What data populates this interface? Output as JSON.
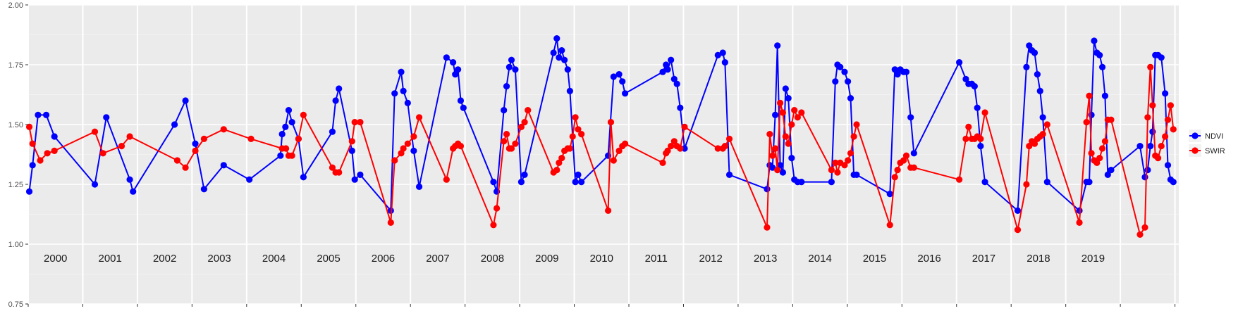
{
  "chart_data": {
    "type": "line",
    "ylim": [
      0.75,
      2.0
    ],
    "y_ticks": [
      "0.75",
      "1.00",
      "1.25",
      "1.50",
      "1.75",
      "2.00"
    ],
    "year_labels": [
      "2000",
      "2001",
      "2002",
      "2003",
      "2004",
      "2005",
      "2006",
      "2007",
      "2008",
      "2009",
      "2010",
      "2011",
      "2012",
      "2013",
      "2014",
      "2015",
      "2016",
      "2017",
      "2018",
      "2019"
    ],
    "grid": true,
    "legend_position": "right",
    "series": [
      {
        "name": "NDVI",
        "color": "#0000ff",
        "points": [
          [
            2000.02,
            1.22
          ],
          [
            2000.08,
            1.33
          ],
          [
            2000.18,
            1.54
          ],
          [
            2000.33,
            1.54
          ],
          [
            2000.48,
            1.45
          ],
          [
            2001.22,
            1.25
          ],
          [
            2001.43,
            1.53
          ],
          [
            2001.86,
            1.27
          ],
          [
            2001.92,
            1.22
          ],
          [
            2002.68,
            1.5
          ],
          [
            2002.88,
            1.6
          ],
          [
            2003.06,
            1.42
          ],
          [
            2003.22,
            1.23
          ],
          [
            2003.58,
            1.33
          ],
          [
            2004.05,
            1.27
          ],
          [
            2004.62,
            1.37
          ],
          [
            2004.65,
            1.46
          ],
          [
            2004.71,
            1.49
          ],
          [
            2004.77,
            1.56
          ],
          [
            2004.83,
            1.51
          ],
          [
            2004.95,
            1.44
          ],
          [
            2005.04,
            1.28
          ],
          [
            2005.57,
            1.47
          ],
          [
            2005.63,
            1.6
          ],
          [
            2005.69,
            1.65
          ],
          [
            2005.93,
            1.39
          ],
          [
            2005.98,
            1.27
          ],
          [
            2006.08,
            1.29
          ],
          [
            2006.64,
            1.14
          ],
          [
            2006.71,
            1.63
          ],
          [
            2006.83,
            1.72
          ],
          [
            2006.87,
            1.64
          ],
          [
            2006.95,
            1.59
          ],
          [
            2007.06,
            1.39
          ],
          [
            2007.16,
            1.24
          ],
          [
            2007.66,
            1.78
          ],
          [
            2007.78,
            1.76
          ],
          [
            2007.82,
            1.71
          ],
          [
            2007.87,
            1.73
          ],
          [
            2007.92,
            1.6
          ],
          [
            2007.97,
            1.57
          ],
          [
            2008.52,
            1.26
          ],
          [
            2008.58,
            1.22
          ],
          [
            2008.71,
            1.56
          ],
          [
            2008.76,
            1.66
          ],
          [
            2008.81,
            1.74
          ],
          [
            2008.85,
            1.77
          ],
          [
            2008.92,
            1.73
          ],
          [
            2009.03,
            1.26
          ],
          [
            2009.09,
            1.29
          ],
          [
            2009.62,
            1.8
          ],
          [
            2009.68,
            1.86
          ],
          [
            2009.72,
            1.78
          ],
          [
            2009.77,
            1.81
          ],
          [
            2009.82,
            1.77
          ],
          [
            2009.88,
            1.73
          ],
          [
            2009.92,
            1.64
          ],
          [
            2010.02,
            1.26
          ],
          [
            2010.07,
            1.29
          ],
          [
            2010.13,
            1.26
          ],
          [
            2010.62,
            1.37
          ],
          [
            2010.72,
            1.7
          ],
          [
            2010.82,
            1.71
          ],
          [
            2010.88,
            1.68
          ],
          [
            2010.93,
            1.63
          ],
          [
            2011.62,
            1.72
          ],
          [
            2011.68,
            1.75
          ],
          [
            2011.71,
            1.73
          ],
          [
            2011.77,
            1.77
          ],
          [
            2011.83,
            1.69
          ],
          [
            2011.88,
            1.67
          ],
          [
            2011.94,
            1.57
          ],
          [
            2012.02,
            1.4
          ],
          [
            2012.63,
            1.79
          ],
          [
            2012.72,
            1.8
          ],
          [
            2012.76,
            1.76
          ],
          [
            2012.84,
            1.29
          ],
          [
            2013.53,
            1.23
          ],
          [
            2013.58,
            1.33
          ],
          [
            2013.63,
            1.32
          ],
          [
            2013.68,
            1.54
          ],
          [
            2013.72,
            1.83
          ],
          [
            2013.77,
            1.33
          ],
          [
            2013.82,
            1.3
          ],
          [
            2013.87,
            1.65
          ],
          [
            2013.92,
            1.61
          ],
          [
            2013.98,
            1.36
          ],
          [
            2014.03,
            1.27
          ],
          [
            2014.09,
            1.26
          ],
          [
            2014.16,
            1.26
          ],
          [
            2014.71,
            1.26
          ],
          [
            2014.78,
            1.68
          ],
          [
            2014.82,
            1.75
          ],
          [
            2014.87,
            1.74
          ],
          [
            2014.95,
            1.72
          ],
          [
            2015.01,
            1.68
          ],
          [
            2015.06,
            1.61
          ],
          [
            2015.12,
            1.29
          ],
          [
            2015.17,
            1.29
          ],
          [
            2015.78,
            1.21
          ],
          [
            2015.87,
            1.73
          ],
          [
            2015.92,
            1.71
          ],
          [
            2015.97,
            1.73
          ],
          [
            2016.03,
            1.72
          ],
          [
            2016.08,
            1.72
          ],
          [
            2016.16,
            1.53
          ],
          [
            2016.22,
            1.38
          ],
          [
            2017.05,
            1.76
          ],
          [
            2017.17,
            1.69
          ],
          [
            2017.22,
            1.67
          ],
          [
            2017.28,
            1.67
          ],
          [
            2017.33,
            1.66
          ],
          [
            2017.38,
            1.57
          ],
          [
            2017.44,
            1.41
          ],
          [
            2017.52,
            1.26
          ],
          [
            2018.12,
            1.14
          ],
          [
            2018.28,
            1.74
          ],
          [
            2018.33,
            1.83
          ],
          [
            2018.38,
            1.81
          ],
          [
            2018.43,
            1.8
          ],
          [
            2018.48,
            1.71
          ],
          [
            2018.53,
            1.64
          ],
          [
            2018.58,
            1.53
          ],
          [
            2018.66,
            1.26
          ],
          [
            2019.25,
            1.14
          ],
          [
            2019.38,
            1.26
          ],
          [
            2019.43,
            1.26
          ],
          [
            2019.47,
            1.54
          ],
          [
            2019.52,
            1.85
          ],
          [
            2019.57,
            1.8
          ],
          [
            2019.62,
            1.79
          ],
          [
            2019.67,
            1.74
          ],
          [
            2019.72,
            1.62
          ],
          [
            2019.77,
            1.29
          ],
          [
            2019.83,
            1.31
          ],
          [
            2020.36,
            1.41
          ],
          [
            2020.45,
            1.28
          ],
          [
            2020.5,
            1.31
          ],
          [
            2020.55,
            1.41
          ],
          [
            2020.59,
            1.47
          ],
          [
            2020.64,
            1.79
          ],
          [
            2020.69,
            1.79
          ],
          [
            2020.75,
            1.78
          ],
          [
            2020.82,
            1.63
          ],
          [
            2020.87,
            1.33
          ],
          [
            2020.92,
            1.27
          ],
          [
            2020.97,
            1.26
          ]
        ]
      },
      {
        "name": "SWIR",
        "color": "#ff0000",
        "points": [
          [
            2000.02,
            1.49
          ],
          [
            2000.08,
            1.42
          ],
          [
            2000.22,
            1.35
          ],
          [
            2000.35,
            1.38
          ],
          [
            2000.48,
            1.39
          ],
          [
            2001.22,
            1.47
          ],
          [
            2001.37,
            1.38
          ],
          [
            2001.71,
            1.41
          ],
          [
            2001.86,
            1.45
          ],
          [
            2002.73,
            1.35
          ],
          [
            2002.88,
            1.32
          ],
          [
            2003.06,
            1.39
          ],
          [
            2003.22,
            1.44
          ],
          [
            2003.58,
            1.48
          ],
          [
            2004.08,
            1.44
          ],
          [
            2004.65,
            1.4
          ],
          [
            2004.72,
            1.4
          ],
          [
            2004.77,
            1.37
          ],
          [
            2004.83,
            1.37
          ],
          [
            2004.95,
            1.44
          ],
          [
            2005.04,
            1.54
          ],
          [
            2005.57,
            1.32
          ],
          [
            2005.63,
            1.3
          ],
          [
            2005.69,
            1.3
          ],
          [
            2005.93,
            1.43
          ],
          [
            2005.98,
            1.51
          ],
          [
            2006.08,
            1.51
          ],
          [
            2006.64,
            1.09
          ],
          [
            2006.71,
            1.35
          ],
          [
            2006.83,
            1.38
          ],
          [
            2006.87,
            1.4
          ],
          [
            2006.95,
            1.42
          ],
          [
            2007.06,
            1.45
          ],
          [
            2007.16,
            1.53
          ],
          [
            2007.66,
            1.27
          ],
          [
            2007.78,
            1.4
          ],
          [
            2007.82,
            1.41
          ],
          [
            2007.87,
            1.42
          ],
          [
            2007.92,
            1.41
          ],
          [
            2008.52,
            1.08
          ],
          [
            2008.58,
            1.15
          ],
          [
            2008.71,
            1.43
          ],
          [
            2008.76,
            1.46
          ],
          [
            2008.81,
            1.4
          ],
          [
            2008.85,
            1.4
          ],
          [
            2008.92,
            1.42
          ],
          [
            2009.03,
            1.49
          ],
          [
            2009.09,
            1.51
          ],
          [
            2009.15,
            1.56
          ],
          [
            2009.62,
            1.3
          ],
          [
            2009.68,
            1.31
          ],
          [
            2009.72,
            1.34
          ],
          [
            2009.77,
            1.36
          ],
          [
            2009.82,
            1.39
          ],
          [
            2009.88,
            1.4
          ],
          [
            2009.92,
            1.4
          ],
          [
            2009.97,
            1.45
          ],
          [
            2010.02,
            1.53
          ],
          [
            2010.07,
            1.48
          ],
          [
            2010.13,
            1.46
          ],
          [
            2010.62,
            1.14
          ],
          [
            2010.67,
            1.51
          ],
          [
            2010.72,
            1.35
          ],
          [
            2010.82,
            1.39
          ],
          [
            2010.88,
            1.41
          ],
          [
            2010.93,
            1.42
          ],
          [
            2011.62,
            1.34
          ],
          [
            2011.68,
            1.38
          ],
          [
            2011.71,
            1.39
          ],
          [
            2011.77,
            1.41
          ],
          [
            2011.83,
            1.43
          ],
          [
            2011.88,
            1.41
          ],
          [
            2011.94,
            1.4
          ],
          [
            2012.02,
            1.49
          ],
          [
            2012.63,
            1.4
          ],
          [
            2012.72,
            1.4
          ],
          [
            2012.76,
            1.41
          ],
          [
            2012.84,
            1.44
          ],
          [
            2013.53,
            1.07
          ],
          [
            2013.58,
            1.46
          ],
          [
            2013.63,
            1.37
          ],
          [
            2013.68,
            1.4
          ],
          [
            2013.72,
            1.31
          ],
          [
            2013.77,
            1.59
          ],
          [
            2013.82,
            1.55
          ],
          [
            2013.87,
            1.45
          ],
          [
            2013.92,
            1.42
          ],
          [
            2013.98,
            1.5
          ],
          [
            2014.03,
            1.56
          ],
          [
            2014.09,
            1.53
          ],
          [
            2014.16,
            1.55
          ],
          [
            2014.71,
            1.31
          ],
          [
            2014.78,
            1.34
          ],
          [
            2014.82,
            1.3
          ],
          [
            2014.87,
            1.34
          ],
          [
            2014.95,
            1.33
          ],
          [
            2015.01,
            1.35
          ],
          [
            2015.06,
            1.38
          ],
          [
            2015.12,
            1.45
          ],
          [
            2015.17,
            1.5
          ],
          [
            2015.78,
            1.08
          ],
          [
            2015.87,
            1.28
          ],
          [
            2015.92,
            1.31
          ],
          [
            2015.97,
            1.34
          ],
          [
            2016.03,
            1.35
          ],
          [
            2016.08,
            1.37
          ],
          [
            2016.16,
            1.32
          ],
          [
            2016.22,
            1.32
          ],
          [
            2017.05,
            1.27
          ],
          [
            2017.17,
            1.44
          ],
          [
            2017.22,
            1.49
          ],
          [
            2017.28,
            1.44
          ],
          [
            2017.33,
            1.44
          ],
          [
            2017.38,
            1.45
          ],
          [
            2017.44,
            1.44
          ],
          [
            2017.52,
            1.55
          ],
          [
            2018.12,
            1.06
          ],
          [
            2018.28,
            1.25
          ],
          [
            2018.33,
            1.41
          ],
          [
            2018.38,
            1.43
          ],
          [
            2018.43,
            1.42
          ],
          [
            2018.48,
            1.44
          ],
          [
            2018.53,
            1.45
          ],
          [
            2018.58,
            1.46
          ],
          [
            2018.66,
            1.5
          ],
          [
            2019.25,
            1.09
          ],
          [
            2019.38,
            1.51
          ],
          [
            2019.43,
            1.62
          ],
          [
            2019.47,
            1.38
          ],
          [
            2019.52,
            1.35
          ],
          [
            2019.57,
            1.34
          ],
          [
            2019.62,
            1.36
          ],
          [
            2019.67,
            1.4
          ],
          [
            2019.72,
            1.43
          ],
          [
            2019.77,
            1.52
          ],
          [
            2019.83,
            1.52
          ],
          [
            2020.36,
            1.04
          ],
          [
            2020.45,
            1.07
          ],
          [
            2020.5,
            1.53
          ],
          [
            2020.55,
            1.74
          ],
          [
            2020.59,
            1.58
          ],
          [
            2020.64,
            1.37
          ],
          [
            2020.69,
            1.36
          ],
          [
            2020.75,
            1.41
          ],
          [
            2020.82,
            1.45
          ],
          [
            2020.87,
            1.52
          ],
          [
            2020.92,
            1.58
          ],
          [
            2020.97,
            1.48
          ]
        ]
      }
    ]
  }
}
